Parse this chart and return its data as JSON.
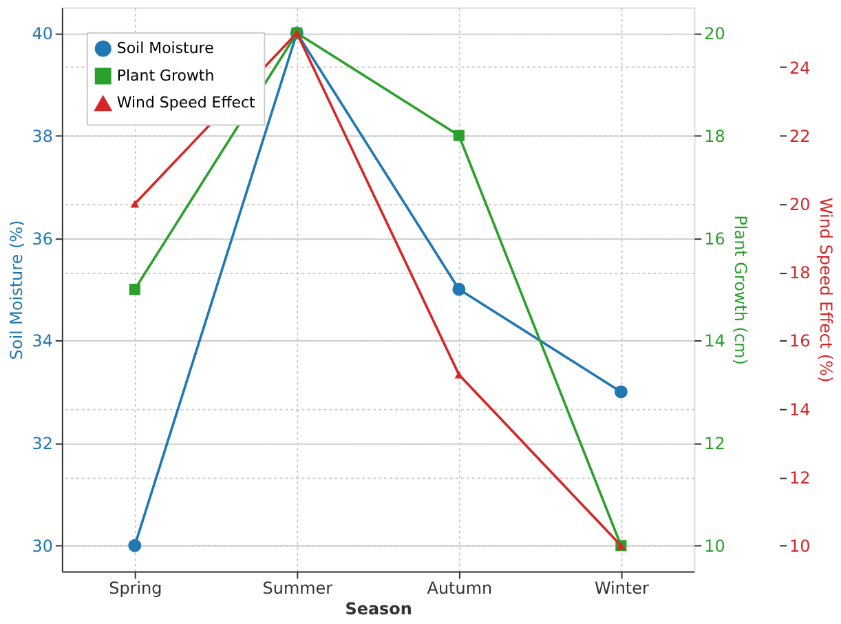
{
  "chart_data": {
    "type": "line",
    "categories": [
      "Spring",
      "Summer",
      "Autumn",
      "Winter"
    ],
    "series": [
      {
        "name": "Soil Moisture",
        "color": "#1f77b4",
        "values": [
          30,
          40,
          35,
          33
        ],
        "marker": "circle"
      },
      {
        "name": "Plant Growth",
        "color": "#2ca02c",
        "values": [
          15,
          20,
          18,
          10
        ],
        "marker": "square",
        "axis": "y2"
      },
      {
        "name": "Wind Speed Effect",
        "color": "#d62728",
        "values": [
          20,
          25,
          15,
          10
        ],
        "marker": "triangle",
        "axis": "y3"
      }
    ],
    "xlabel": "Season",
    "ylabel": "Soil Moisture (%)",
    "y2label": "Plant Growth (cm)",
    "y3label": "Wind Speed Effect (%)",
    "ylim": [
      29.5,
      40.5
    ],
    "yticks": [
      30,
      32,
      34,
      36,
      38,
      40
    ],
    "y2lim": [
      9.5,
      20.5
    ],
    "y2ticks": [
      10,
      12,
      14,
      16,
      18,
      20
    ],
    "y3lim": [
      9.25,
      25.75
    ],
    "y3ticks": [
      10,
      12,
      14,
      16,
      18,
      20,
      22,
      24
    ],
    "grid": true,
    "legend": "top left",
    "line_style": "solid"
  }
}
